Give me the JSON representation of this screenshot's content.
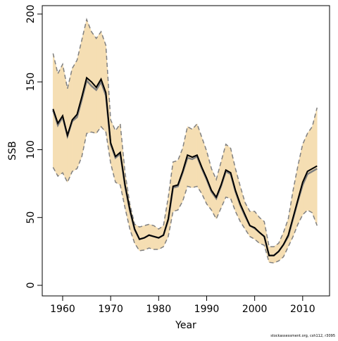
{
  "chart_data": {
    "type": "line",
    "x_label": "Year",
    "y_label": "SSB",
    "footnote": "stockassessment.org, csh112, r3095",
    "x": [
      1958,
      1959,
      1960,
      1961,
      1962,
      1963,
      1964,
      1965,
      1966,
      1967,
      1968,
      1969,
      1970,
      1971,
      1972,
      1973,
      1974,
      1975,
      1976,
      1977,
      1978,
      1979,
      1980,
      1981,
      1982,
      1983,
      1984,
      1985,
      1986,
      1987,
      1988,
      1989,
      1990,
      1991,
      1992,
      1993,
      1994,
      1995,
      1996,
      1997,
      1998,
      1999,
      2000,
      2001,
      2002,
      2003,
      2004,
      2005,
      2006,
      2007,
      2008,
      2009,
      2010,
      2011,
      2012,
      2013
    ],
    "band": {
      "fill": "#f5deb3",
      "line_color": "#808080",
      "upper": [
        171,
        156,
        163,
        145,
        160,
        166,
        181,
        196,
        187,
        182,
        187,
        177,
        122,
        114,
        119,
        83,
        60,
        45,
        43,
        44,
        45,
        44,
        41.5,
        44,
        65,
        91,
        92,
        101,
        117,
        115,
        119,
        109,
        99,
        86,
        78,
        91,
        104,
        101,
        86,
        73,
        61,
        54.5,
        54.5,
        50,
        47,
        28.5,
        28.5,
        31,
        39,
        49,
        70,
        88,
        104,
        112,
        117,
        131
      ],
      "lower": [
        87,
        80.5,
        83,
        76,
        84,
        86,
        95,
        112,
        113,
        112,
        117,
        113,
        90,
        76,
        74,
        57,
        41.5,
        31,
        25.5,
        26,
        27.5,
        26.5,
        26.5,
        28.5,
        36,
        54.5,
        55.5,
        62,
        73,
        72,
        73,
        67.5,
        60,
        55.5,
        49,
        57,
        65,
        64,
        54.5,
        47,
        41.5,
        36,
        34,
        31,
        29.5,
        17,
        16.5,
        18,
        21,
        28.5,
        36,
        45,
        52,
        55.5,
        53.5,
        44
      ]
    },
    "series": [
      {
        "color": "#808080",
        "values": [
          129,
          118,
          124,
          110,
          121,
          124,
          137,
          151,
          147,
          144,
          150,
          140,
          104,
          94,
          97,
          73,
          55,
          41,
          34,
          35,
          37,
          36,
          35,
          37,
          48,
          72,
          73,
          83,
          94,
          93,
          95,
          86,
          78,
          69,
          64,
          73,
          84,
          82,
          69,
          59,
          51,
          44,
          42,
          39,
          36,
          22,
          22,
          25,
          30,
          36,
          49,
          62,
          74,
          82,
          84,
          86
        ]
      },
      {
        "color": "#000000",
        "values": [
          130,
          119.5,
          125,
          110.6,
          122,
          126,
          139,
          153,
          150,
          146,
          152,
          142,
          105,
          95,
          98,
          74,
          56,
          41.5,
          34,
          35,
          37,
          36,
          35,
          37,
          49,
          73,
          74,
          84,
          96,
          94.5,
          96,
          87,
          79,
          70,
          65,
          74,
          85,
          83,
          70,
          60,
          52,
          44,
          42.5,
          39,
          36,
          22,
          22,
          25,
          30,
          37,
          50,
          63,
          76,
          84,
          86,
          88
        ]
      }
    ],
    "xlim": [
      1955.75,
      2015.6
    ],
    "ylim": [
      -7.8,
      206.2
    ],
    "xticks": [
      1960,
      1970,
      1980,
      1990,
      2000,
      2010
    ],
    "yticks": [
      0,
      50,
      100,
      150,
      200
    ]
  }
}
